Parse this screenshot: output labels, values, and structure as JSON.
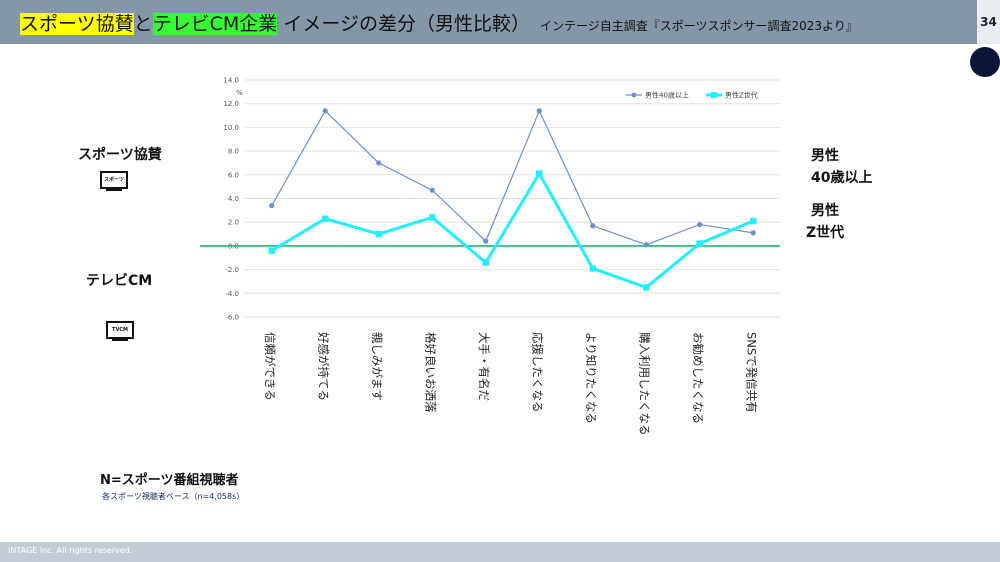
{
  "header": {
    "title_part1": "スポーツ協賛",
    "title_part2": "と",
    "title_part3": "テレビCM企業",
    "title_part4": " イメージの差分（男性比較）",
    "source": "インテージ自主調査『スポーツスポンサー調査2023より』",
    "page_number": "34"
  },
  "left_labels": {
    "sponsor": "スポーツ協賛",
    "sponsor_icon_text": "スポーツ",
    "tvcm": "テレビCM",
    "tvcm_icon_text": "TVCM"
  },
  "right_labels": {
    "top_line1": "男性",
    "top_line2": "40歳以上",
    "bottom_line1": "男性",
    "bottom_line2": "Z世代"
  },
  "note": {
    "title": "N=スポーツ番組視聴者",
    "sub": "各スポーツ視聴者ベース（n=4,058s）"
  },
  "footer": {
    "text": "INTAGE Inc. All rights reserved."
  },
  "colors": {
    "header": "#8497a8",
    "series1": "#6f8fc8",
    "series2": "#1ff0ff",
    "zero_line": "#22b86a"
  },
  "chart_data": {
    "type": "line",
    "unit": "%",
    "categories": [
      "信頼ができる",
      "好感が持てる",
      "親しみがます",
      "格好良いお洒落",
      "大手・有名だ",
      "応援したくなる",
      "より知りたくなる",
      "購入利用したくなる",
      "お勧めしたくなる",
      "SNSで発信共有"
    ],
    "series": [
      {
        "name": "男性40歳以上",
        "values": [
          3.4,
          11.4,
          7.0,
          4.7,
          0.4,
          11.4,
          1.7,
          0.1,
          1.8,
          1.1
        ]
      },
      {
        "name": "男性Z世代",
        "values": [
          -0.4,
          2.3,
          1.0,
          2.4,
          -1.4,
          6.1,
          -1.9,
          -3.5,
          0.2,
          2.1
        ]
      }
    ],
    "ylim": [
      -6.0,
      14.0
    ],
    "yticks": [
      "14.0",
      "12.0",
      "10.0",
      "8.0",
      "6.0",
      "4.0",
      "2.0",
      "0.0",
      "-2.0",
      "-4.0",
      "-6.0"
    ],
    "grid": true,
    "legend_position": "top-right"
  }
}
